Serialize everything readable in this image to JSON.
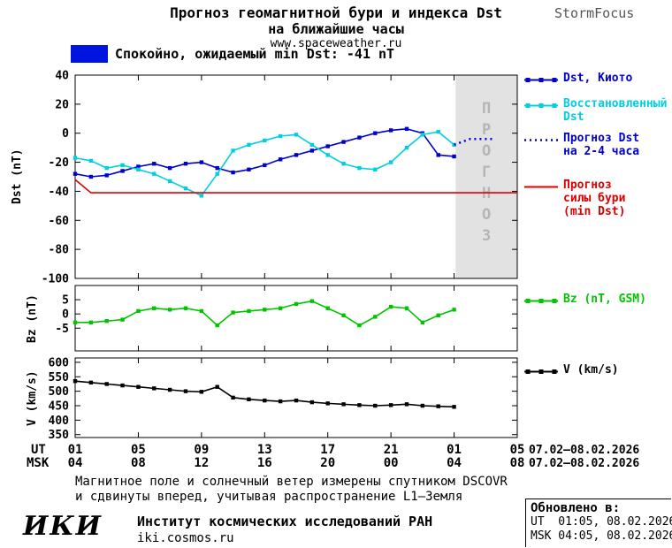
{
  "header": {
    "title_line1": "Прогноз геомагнитной бури и индекса Dst",
    "title_line2": "на ближайшие часы",
    "site": "www.spaceweather.ru",
    "brand": "StormFocus"
  },
  "status": {
    "label": "Спокойно, ожидаемый min Dst: -41 nT",
    "color": "#0014e0"
  },
  "chart_data": [
    {
      "type": "line",
      "ylabel": "Dst (nT)",
      "ylim": [
        -100,
        40
      ],
      "yticks": [
        40,
        20,
        0,
        -20,
        -40,
        -60,
        -80,
        -100
      ],
      "xlim": [
        0,
        28
      ],
      "xticks": [
        0,
        4,
        8,
        12,
        16,
        20,
        24,
        28
      ],
      "forecast_region": [
        24.1,
        28
      ],
      "forecast_label": "ПРОГНОЗ",
      "series": [
        {
          "name": "Dst, Киото",
          "color": "#0000cd",
          "marker": "square",
          "x": [
            0,
            1,
            2,
            3,
            4,
            5,
            6,
            7,
            8,
            9,
            10,
            11,
            12,
            13,
            14,
            15,
            16,
            17,
            18,
            19,
            20,
            21,
            22,
            23,
            24
          ],
          "values": [
            -28,
            -30,
            -29,
            -26,
            -23,
            -21,
            -24,
            -21,
            -20,
            -24,
            -27,
            -25,
            -22,
            -18,
            -15,
            -12,
            -9,
            -6,
            -3,
            0,
            2,
            3,
            0,
            -15,
            -16
          ]
        },
        {
          "name": "Восстановленный\nDst",
          "color": "#00cfe0",
          "marker": "square",
          "x": [
            0,
            1,
            2,
            3,
            4,
            5,
            6,
            7,
            8,
            9,
            10,
            11,
            12,
            13,
            14,
            15,
            16,
            17,
            18,
            19,
            20,
            21,
            22,
            23,
            24
          ],
          "values": [
            -17,
            -19,
            -24,
            -22,
            -25,
            -28,
            -33,
            -38,
            -43,
            -28,
            -12,
            -8,
            -5,
            -2,
            -1,
            -8,
            -15,
            -21,
            -24,
            -25,
            -20,
            -10,
            -1,
            1,
            -8
          ]
        },
        {
          "name": "Прогноз Dst\nна 2-4 часа",
          "color": "#0000cd",
          "style": "dotted",
          "x": [
            24,
            25,
            26.5
          ],
          "values": [
            -8,
            -4,
            -4
          ]
        },
        {
          "name": "Прогноз\nсилы бури\n(min Dst)",
          "color": "#dd0000",
          "x": [
            0,
            1,
            28
          ],
          "values": [
            -32,
            -41,
            -41
          ]
        }
      ]
    },
    {
      "type": "line",
      "ylabel": "Bz (nT)",
      "ylim": [
        -13,
        10
      ],
      "yticks": [
        5,
        0,
        -5
      ],
      "xlim": [
        0,
        28
      ],
      "xticks": [
        0,
        4,
        8,
        12,
        16,
        20,
        24,
        28
      ],
      "series": [
        {
          "name": "Bz (nT, GSM)",
          "color": "#00c400",
          "marker": "square",
          "x": [
            0,
            1,
            2,
            3,
            4,
            5,
            6,
            7,
            8,
            9,
            10,
            11,
            12,
            13,
            14,
            15,
            16,
            17,
            18,
            19,
            20,
            21,
            22,
            23,
            24
          ],
          "values": [
            -3,
            -3,
            -2.5,
            -2,
            1,
            2,
            1.5,
            2,
            1,
            -4,
            0.5,
            1,
            1.5,
            2,
            3.5,
            4.5,
            2,
            -0.5,
            -4,
            -1,
            2.5,
            2,
            -3,
            -0.5,
            1.5
          ]
        }
      ]
    },
    {
      "type": "line",
      "ylabel": "V (km/s)",
      "ylim": [
        340,
        615
      ],
      "yticks": [
        600,
        550,
        500,
        450,
        400,
        350
      ],
      "xlim": [
        0,
        28
      ],
      "xticks": [
        0,
        4,
        8,
        12,
        16,
        20,
        24,
        28
      ],
      "series": [
        {
          "name": "V (km/s)",
          "color": "#000000",
          "marker": "square",
          "x": [
            0,
            1,
            2,
            3,
            4,
            5,
            6,
            7,
            8,
            9,
            10,
            11,
            12,
            13,
            14,
            15,
            16,
            17,
            18,
            19,
            20,
            21,
            22,
            23,
            24
          ],
          "values": [
            535,
            530,
            525,
            520,
            515,
            510,
            505,
            500,
            498,
            515,
            478,
            472,
            468,
            465,
            468,
            462,
            458,
            455,
            452,
            450,
            452,
            455,
            450,
            448,
            446
          ]
        }
      ]
    }
  ],
  "xaxis": {
    "ut_label": "UT",
    "msk_label": "MSK",
    "tick_hours": [
      0,
      4,
      8,
      12,
      16,
      20,
      24,
      28
    ],
    "ut_ticks": [
      "01",
      "05",
      "09",
      "13",
      "17",
      "21",
      "01",
      "05"
    ],
    "msk_ticks": [
      "04",
      "08",
      "12",
      "16",
      "20",
      "00",
      "04",
      "08"
    ],
    "ut_date": "07.02—08.02.2026",
    "msk_date": "07.02—08.02.2026"
  },
  "footer": {
    "note_line1": "Магнитное поле и солнечный ветер измерены спутником DSCOVR",
    "note_line2": "и сдвинуты вперед, учитывая распространение L1—Земля",
    "logo": "ИКИ",
    "institute": "Институт космических исследований РАН",
    "site": "iki.cosmos.ru",
    "updated_label": "Обновлено в:",
    "updated_ut": "UT  01:05, 08.02.2026",
    "updated_msk": "MSK 04:05, 08.02.2026"
  }
}
